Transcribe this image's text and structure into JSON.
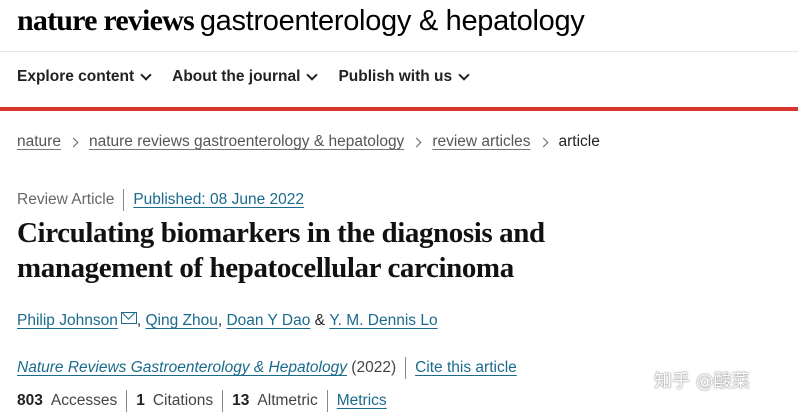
{
  "masthead": {
    "brand_bold": "nature reviews",
    "brand_light": "gastroenterology & hepatology"
  },
  "nav": [
    {
      "label": "Explore content"
    },
    {
      "label": "About the journal"
    },
    {
      "label": "Publish with us"
    }
  ],
  "breadcrumb": {
    "items": [
      "nature",
      "nature reviews gastroenterology & hepatology",
      "review articles"
    ],
    "current": "article"
  },
  "meta": {
    "type": "Review Article",
    "published": "Published: 08 June 2022"
  },
  "article": {
    "title": "Circulating biomarkers in the diagnosis and management of hepatocellular carcinoma"
  },
  "authors": [
    {
      "name": "Philip Johnson",
      "suffix": ""
    },
    {
      "name": "Qing Zhou",
      "suffix": ","
    },
    {
      "name": "Doan Y Dao",
      "suffix": "&"
    },
    {
      "name": "Y. M. Dennis Lo",
      "suffix": ""
    }
  ],
  "citation": {
    "journal": "Nature Reviews Gastroenterology & Hepatology",
    "year": "(2022)",
    "cite_label": "Cite this article"
  },
  "stats": [
    {
      "value": "803",
      "label": "Accesses"
    },
    {
      "value": "1",
      "label": "Citations"
    },
    {
      "value": "13",
      "label": "Altmetric"
    }
  ],
  "metrics_link": "Metrics",
  "watermark": "知乎 @酸菜",
  "colors": {
    "accent_red": "#d6362c",
    "link_blue": "#1a6a8c"
  },
  "icons": {
    "nav_dropdown": "chevron-down-icon",
    "breadcrumb_separator": "chevron-right-icon",
    "author_contact": "mail-icon"
  }
}
